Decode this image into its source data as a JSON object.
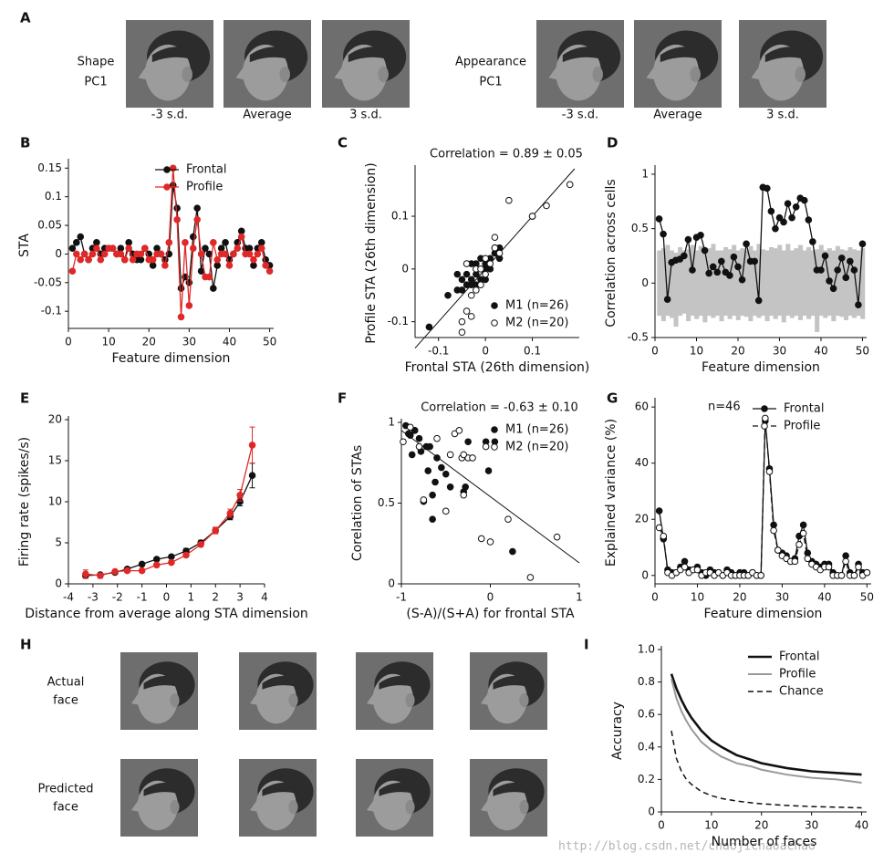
{
  "panel_labels": [
    "A",
    "B",
    "C",
    "D",
    "E",
    "F",
    "G",
    "H",
    "I"
  ],
  "panel_a": {
    "shape_label": [
      "Shape",
      "PC1"
    ],
    "appearance_label": [
      "Appearance",
      "PC1"
    ],
    "captions": [
      "-3 s.d.",
      "Average",
      "3 s.d.",
      "-3 s.d.",
      "Average",
      "3 s.d."
    ]
  },
  "panel_h": {
    "row_labels": [
      [
        "Actual",
        "face"
      ],
      [
        "Predicted",
        "face"
      ]
    ]
  },
  "watermark": "http://blog.csdn.net/chaojichaoachao",
  "chart_data": [
    {
      "type": "line",
      "xlabel": "Feature dimension",
      "ylabel": "STA",
      "x": [
        1,
        2,
        3,
        4,
        5,
        6,
        7,
        8,
        9,
        10,
        11,
        12,
        13,
        14,
        15,
        16,
        17,
        18,
        19,
        20,
        21,
        22,
        23,
        24,
        25,
        26,
        27,
        28,
        29,
        30,
        31,
        32,
        33,
        34,
        35,
        36,
        37,
        38,
        39,
        40,
        41,
        42,
        43,
        44,
        45,
        46,
        47,
        48,
        49,
        50
      ],
      "xlim": [
        0,
        51
      ],
      "xticks": [
        0,
        10,
        20,
        30,
        40,
        50
      ],
      "ylim": [
        -0.13,
        0.16
      ],
      "yticks": [
        -0.1,
        -0.05,
        0,
        0.05,
        0.1,
        0.15
      ],
      "legend": "upper right",
      "series": [
        {
          "name": "Frontal",
          "color": "#111111",
          "marker": "filled",
          "values": [
            0.01,
            0.02,
            0.03,
            0.0,
            -0.01,
            0.01,
            0.02,
            0.0,
            0.01,
            0.01,
            0.01,
            0.0,
            0.01,
            -0.01,
            0.02,
            0.0,
            -0.01,
            -0.01,
            0.01,
            0.0,
            -0.02,
            0.01,
            0.0,
            -0.01,
            0.0,
            0.12,
            0.08,
            -0.06,
            -0.04,
            -0.05,
            0.03,
            0.08,
            -0.03,
            0.01,
            0.0,
            -0.06,
            -0.02,
            0.01,
            0.02,
            -0.01,
            0.0,
            0.02,
            0.04,
            0.01,
            0.01,
            -0.02,
            0.01,
            0.02,
            -0.01,
            -0.02
          ]
        },
        {
          "name": "Profile",
          "color": "#e02828",
          "marker": "filled",
          "values": [
            -0.03,
            0.0,
            -0.01,
            0.0,
            -0.01,
            0.0,
            0.01,
            -0.01,
            0.0,
            0.01,
            0.01,
            0.0,
            0.0,
            -0.01,
            0.01,
            -0.01,
            0.0,
            0.0,
            0.01,
            -0.01,
            -0.01,
            0.0,
            0.0,
            -0.02,
            0.02,
            0.15,
            0.06,
            -0.11,
            0.02,
            -0.09,
            0.01,
            0.06,
            0.0,
            -0.04,
            -0.04,
            0.02,
            -0.01,
            0.0,
            0.0,
            -0.02,
            0.0,
            0.01,
            0.03,
            0.0,
            0.0,
            -0.01,
            0.0,
            0.01,
            -0.02,
            -0.03
          ]
        }
      ]
    },
    {
      "type": "scatter",
      "title": "Correlation = 0.89 ± 0.05",
      "xlabel": "Frontal STA (26th dimension)",
      "ylabel": "Profile STA (26th dimension)",
      "xlim": [
        -0.15,
        0.2
      ],
      "xticks": [
        -0.1,
        0,
        0.1
      ],
      "ylim": [
        -0.13,
        0.19
      ],
      "yticks": [
        -0.1,
        0,
        0.1
      ],
      "legend": "lower right",
      "reference_line": {
        "x": [
          -0.15,
          0.19
        ],
        "y": [
          -0.15,
          0.19
        ]
      },
      "series": [
        {
          "name": "M1 (n=26)",
          "color": "#111111",
          "marker": "filled",
          "x": [
            -0.12,
            -0.08,
            -0.06,
            -0.05,
            -0.04,
            -0.04,
            -0.03,
            -0.03,
            -0.02,
            -0.02,
            -0.02,
            -0.01,
            -0.01,
            0.0,
            0.0,
            0.01,
            0.01,
            0.02,
            0.02,
            0.03,
            -0.05,
            -0.03,
            0.0,
            0.03,
            0.1,
            -0.06
          ],
          "values": [
            -0.11,
            -0.05,
            -0.04,
            -0.02,
            -0.03,
            -0.01,
            -0.03,
            -0.02,
            -0.03,
            -0.01,
            0.01,
            -0.02,
            0.02,
            -0.02,
            0.01,
            0.0,
            0.02,
            0.03,
            0.04,
            0.02,
            -0.04,
            0.01,
            0.0,
            0.04,
            0.1,
            -0.01
          ]
        },
        {
          "name": "M2 (n=20)",
          "color": "#111111",
          "marker": "open",
          "x": [
            -0.05,
            -0.05,
            -0.04,
            -0.03,
            -0.03,
            -0.02,
            -0.02,
            -0.01,
            -0.01,
            0.0,
            0.0,
            0.01,
            0.02,
            0.02,
            0.03,
            0.05,
            0.1,
            0.13,
            0.18,
            -0.04
          ],
          "values": [
            -0.1,
            -0.12,
            -0.08,
            -0.09,
            -0.05,
            0.0,
            -0.04,
            -0.03,
            0.0,
            -0.01,
            0.02,
            0.01,
            0.04,
            0.06,
            0.03,
            0.13,
            0.1,
            0.12,
            0.16,
            0.01
          ]
        }
      ]
    },
    {
      "type": "line",
      "xlabel": "Feature dimension",
      "ylabel": "Correlation across cells",
      "x": [
        1,
        2,
        3,
        4,
        5,
        6,
        7,
        8,
        9,
        10,
        11,
        12,
        13,
        14,
        15,
        16,
        17,
        18,
        19,
        20,
        21,
        22,
        23,
        24,
        25,
        26,
        27,
        28,
        29,
        30,
        31,
        32,
        33,
        34,
        35,
        36,
        37,
        38,
        39,
        40,
        41,
        42,
        43,
        44,
        45,
        46,
        47,
        48,
        49,
        50
      ],
      "xlim": [
        0,
        51
      ],
      "xticks": [
        0,
        10,
        20,
        30,
        40,
        50
      ],
      "ylim": [
        -0.5,
        1.05
      ],
      "yticks": [
        -0.5,
        0,
        0.5,
        1
      ],
      "band_color": "#c4c4c4",
      "band_upper": [
        0.3,
        0.32,
        0.35,
        0.3,
        0.28,
        0.33,
        0.3,
        0.31,
        0.35,
        0.3,
        0.34,
        0.3,
        0.32,
        0.36,
        0.3,
        0.3,
        0.33,
        0.31,
        0.35,
        0.3,
        0.32,
        0.3,
        0.34,
        0.3,
        0.36,
        0.31,
        0.3,
        0.33,
        0.32,
        0.35,
        0.3,
        0.36,
        0.3,
        0.32,
        0.35,
        0.3,
        0.33,
        0.3,
        0.31,
        0.35,
        0.3,
        0.32,
        0.3,
        0.34,
        0.31,
        0.3,
        0.33,
        0.31,
        0.3,
        0.32
      ],
      "band_lower": [
        -0.3,
        -0.35,
        -0.3,
        -0.32,
        -0.4,
        -0.3,
        -0.28,
        -0.35,
        -0.3,
        -0.33,
        -0.3,
        -0.36,
        -0.3,
        -0.32,
        -0.3,
        -0.35,
        -0.3,
        -0.33,
        -0.3,
        -0.34,
        -0.3,
        -0.31,
        -0.35,
        -0.3,
        -0.32,
        -0.3,
        -0.35,
        -0.3,
        -0.33,
        -0.3,
        -0.36,
        -0.3,
        -0.32,
        -0.3,
        -0.34,
        -0.3,
        -0.33,
        -0.3,
        -0.45,
        -0.3,
        -0.32,
        -0.3,
        -0.35,
        -0.3,
        -0.31,
        -0.34,
        -0.3,
        -0.32,
        -0.3,
        -0.33
      ],
      "series": [
        {
          "color": "#111111",
          "marker": "filled",
          "values": [
            0.59,
            0.45,
            -0.15,
            0.19,
            0.21,
            0.22,
            0.25,
            0.4,
            0.12,
            0.42,
            0.44,
            0.3,
            0.09,
            0.15,
            0.1,
            0.2,
            0.1,
            0.07,
            0.24,
            0.15,
            0.03,
            0.36,
            0.2,
            0.2,
            -0.16,
            0.88,
            0.87,
            0.66,
            0.5,
            0.6,
            0.56,
            0.73,
            0.6,
            0.7,
            0.78,
            0.76,
            0.58,
            0.38,
            0.12,
            0.12,
            0.25,
            0.02,
            -0.05,
            0.12,
            0.23,
            0.05,
            0.2,
            0.12,
            -0.2,
            0.36
          ]
        }
      ]
    },
    {
      "type": "line",
      "xlabel": "Distance from average along STA dimension",
      "ylabel": "Firing rate (spikes/s)",
      "x": [
        -3.3,
        -2.7,
        -2.1,
        -1.6,
        -1.0,
        -0.4,
        0.2,
        0.8,
        1.4,
        2.0,
        2.6,
        3.0,
        3.5
      ],
      "xlim": [
        -4,
        4
      ],
      "xticks": [
        -4,
        -3,
        -2,
        -1,
        0,
        1,
        2,
        3,
        4
      ],
      "ylim": [
        0,
        20
      ],
      "yticks": [
        0,
        5,
        10,
        15,
        20
      ],
      "series": [
        {
          "color": "#111111",
          "marker": "filled",
          "values": [
            1.0,
            1.1,
            1.4,
            1.8,
            2.4,
            3.0,
            3.3,
            4.0,
            5.0,
            6.5,
            8.2,
            10.0,
            13.2
          ],
          "errors": [
            0.3,
            0.2,
            0.1,
            0.1,
            0.2,
            0.2,
            0.2,
            0.3,
            0.3,
            0.3,
            0.4,
            0.5,
            1.5
          ]
        },
        {
          "color": "#e02828",
          "marker": "filled",
          "values": [
            1.2,
            1.0,
            1.5,
            1.6,
            1.6,
            2.3,
            2.6,
            3.5,
            4.8,
            6.5,
            8.6,
            10.8,
            16.9
          ],
          "errors": [
            0.5,
            0.3,
            0.2,
            0.2,
            0.2,
            0.2,
            0.2,
            0.2,
            0.3,
            0.4,
            0.5,
            0.7,
            2.2
          ]
        }
      ]
    },
    {
      "type": "scatter",
      "title": "Correlation = -0.63 ± 0.10",
      "xlabel": "(S-A)/(S+A) for frontal STA",
      "ylabel": "Corelation of STAs",
      "xlim": [
        -1,
        1
      ],
      "xticks": [
        -1,
        0,
        1
      ],
      "ylim": [
        0,
        1
      ],
      "yticks": [
        0,
        0.5,
        1
      ],
      "legend": "upper right",
      "reference_line": {
        "x": [
          -1,
          1
        ],
        "y": [
          0.95,
          0.13
        ]
      },
      "series": [
        {
          "name": "M1 (n=26)",
          "color": "#111111",
          "marker": "filled",
          "x": [
            -0.95,
            -0.92,
            -0.9,
            -0.88,
            -0.85,
            -0.8,
            -0.78,
            -0.75,
            -0.72,
            -0.7,
            -0.68,
            -0.65,
            -0.62,
            -0.6,
            -0.55,
            -0.5,
            -0.45,
            -0.3,
            -0.28,
            -0.25,
            -0.05,
            -0.02,
            0.05,
            0.25,
            -0.65,
            -0.85
          ],
          "values": [
            0.98,
            0.93,
            0.92,
            0.8,
            0.95,
            0.9,
            0.82,
            0.51,
            0.85,
            0.7,
            0.85,
            0.4,
            0.63,
            0.78,
            0.72,
            0.68,
            0.6,
            0.57,
            0.6,
            0.88,
            0.88,
            0.7,
            0.88,
            0.2,
            0.55,
            0.95
          ]
        },
        {
          "name": "M2 (n=20)",
          "color": "#111111",
          "marker": "open",
          "x": [
            -0.98,
            -0.9,
            -0.8,
            -0.75,
            -0.6,
            -0.5,
            -0.45,
            -0.4,
            -0.35,
            -0.32,
            -0.3,
            -0.25,
            -0.2,
            -0.1,
            -0.05,
            0.0,
            0.2,
            0.45,
            0.75,
            -0.3
          ],
          "values": [
            0.88,
            0.97,
            0.85,
            0.52,
            0.9,
            0.45,
            0.8,
            0.93,
            0.95,
            0.78,
            0.55,
            0.78,
            0.78,
            0.28,
            0.85,
            0.26,
            0.4,
            0.04,
            0.29,
            0.8
          ]
        }
      ]
    },
    {
      "type": "line",
      "annotation": "n=46",
      "xlabel": "Feature dimension",
      "ylabel": "Explained variance (%)",
      "x": [
        1,
        2,
        3,
        4,
        5,
        6,
        7,
        8,
        9,
        10,
        11,
        12,
        13,
        14,
        15,
        16,
        17,
        18,
        19,
        20,
        21,
        22,
        23,
        24,
        25,
        26,
        27,
        28,
        29,
        30,
        31,
        32,
        33,
        34,
        35,
        36,
        37,
        38,
        39,
        40,
        41,
        42,
        43,
        44,
        45,
        46,
        47,
        48,
        49,
        50
      ],
      "xlim": [
        0,
        51
      ],
      "xticks": [
        0,
        10,
        20,
        30,
        40,
        50
      ],
      "ylim": [
        -3,
        62
      ],
      "yticks": [
        0,
        20,
        40,
        60
      ],
      "legend": "upper right",
      "series": [
        {
          "name": "Frontal",
          "color": "#111111",
          "marker": "filled",
          "style": "solid",
          "values": [
            23,
            13,
            2,
            1,
            1,
            3,
            5,
            2,
            2,
            3,
            1,
            0,
            2,
            1,
            1,
            0,
            2,
            1,
            0,
            1,
            1,
            0,
            1,
            0,
            0,
            55,
            38,
            18,
            9,
            8,
            7,
            5,
            6,
            14,
            18,
            8,
            5,
            4,
            3,
            4,
            4,
            1,
            0,
            0,
            7,
            1,
            0,
            4,
            1,
            1
          ]
        },
        {
          "name": "Profile",
          "color": "#111111",
          "marker": "open",
          "style": "dashed",
          "values": [
            17,
            14,
            1,
            0,
            1,
            2,
            3,
            1,
            2,
            2,
            0,
            1,
            1,
            0,
            1,
            0,
            1,
            0,
            0,
            0,
            0,
            0,
            1,
            0,
            0,
            56,
            37,
            16,
            9,
            7,
            6,
            5,
            5,
            11,
            15,
            6,
            4,
            3,
            2,
            3,
            3,
            0,
            0,
            0,
            5,
            0,
            0,
            3,
            0,
            1
          ]
        }
      ]
    },
    {
      "type": "line",
      "xlabel": "Number of faces",
      "ylabel": "Accuracy",
      "x": [
        2,
        3,
        4,
        5,
        6,
        8,
        10,
        12,
        15,
        18,
        20,
        25,
        30,
        35,
        40
      ],
      "xlim": [
        0,
        41
      ],
      "xticks": [
        0,
        10,
        20,
        30,
        40
      ],
      "ylim": [
        0,
        1
      ],
      "yticks": [
        0,
        0.2,
        0.4,
        0.6,
        0.8,
        {
          "value": 1,
          "label": "1.0"
        }
      ],
      "legend": "upper right",
      "series": [
        {
          "name": "Frontal",
          "color": "#111111",
          "style": "solid",
          "width": 2.6,
          "values": [
            0.85,
            0.76,
            0.69,
            0.63,
            0.58,
            0.5,
            0.44,
            0.4,
            0.35,
            0.32,
            0.3,
            0.27,
            0.25,
            0.24,
            0.23
          ]
        },
        {
          "name": "Profile",
          "color": "#999999",
          "style": "solid",
          "width": 2,
          "values": [
            0.82,
            0.7,
            0.62,
            0.56,
            0.51,
            0.43,
            0.38,
            0.34,
            0.3,
            0.28,
            0.26,
            0.23,
            0.21,
            0.2,
            0.18
          ]
        },
        {
          "name": "Chance",
          "color": "#111111",
          "style": "dashed",
          "width": 1.5,
          "values": [
            0.5,
            0.33,
            0.25,
            0.2,
            0.17,
            0.125,
            0.1,
            0.083,
            0.067,
            0.056,
            0.05,
            0.04,
            0.033,
            0.029,
            0.025
          ]
        }
      ]
    }
  ]
}
